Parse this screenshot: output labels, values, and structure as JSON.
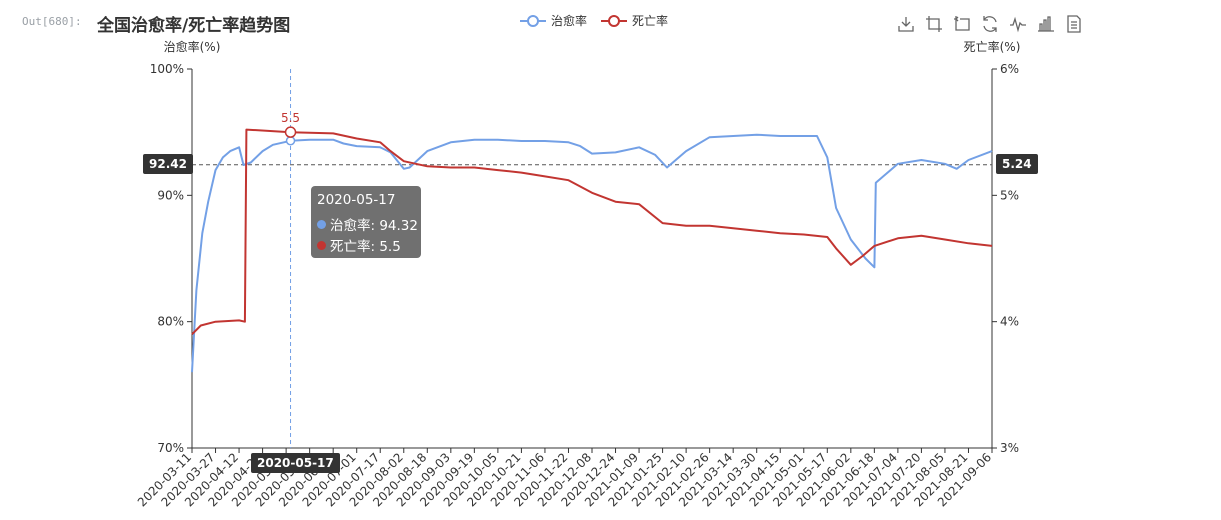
{
  "cell_prompt": "Out[680]:",
  "title": "全国治愈率/死亡率趋势图",
  "legend": [
    {
      "name": "治愈率",
      "color": "#73a0e6"
    },
    {
      "name": "死亡率",
      "color": "#c23531"
    }
  ],
  "toolbox": [
    "save-icon",
    "zoom-icon",
    "zoom-reset-icon",
    "restore-icon",
    "line-chart-icon",
    "bar-chart-icon",
    "data-view-icon"
  ],
  "markers": {
    "left_value": "92.42",
    "right_value": "5.24",
    "x_value": "2020-05-17",
    "point_label": "5.5"
  },
  "tooltip": {
    "date": "2020-05-17",
    "rows": [
      {
        "label": "治愈率: 94.32",
        "color": "#73a0e6"
      },
      {
        "label": "死亡率: 5.5",
        "color": "#c23531"
      }
    ]
  },
  "chart_data": {
    "type": "line",
    "x_start": "2020-03-11",
    "x_end": "2021-09-06",
    "x_ticks": [
      "2020-03-11",
      "2020-03-27",
      "2020-04-12",
      "2020-04-28",
      "2020-05-14",
      "2020-05-30",
      "2020-06-15",
      "2020-07-01",
      "2020-07-17",
      "2020-08-02",
      "2020-08-18",
      "2020-09-03",
      "2020-09-19",
      "2020-10-05",
      "2020-10-21",
      "2020-11-06",
      "2020-11-22",
      "2020-12-08",
      "2020-12-24",
      "2021-01-09",
      "2021-01-25",
      "2021-02-10",
      "2021-02-26",
      "2021-03-14",
      "2021-03-30",
      "2021-04-15",
      "2021-05-01",
      "2021-05-17",
      "2021-06-02",
      "2021-06-18",
      "2021-07-04",
      "2021-07-20",
      "2021-08-05",
      "2021-08-21",
      "2021-09-06"
    ],
    "y_left": {
      "name": "治愈率(%)",
      "min": 70,
      "max": 100,
      "ticks": [
        "70%",
        "80%",
        "90%",
        "100%"
      ]
    },
    "y_right": {
      "name": "死亡率(%)",
      "min": 3,
      "max": 6,
      "ticks": [
        "3%",
        "4%",
        "5%",
        "6%"
      ]
    },
    "series": [
      {
        "name": "治愈率",
        "color": "#73a0e6",
        "axis": "left",
        "points": [
          [
            "2020-03-11",
            76.0
          ],
          [
            "2020-03-14",
            82.5
          ],
          [
            "2020-03-18",
            87.0
          ],
          [
            "2020-03-22",
            89.5
          ],
          [
            "2020-03-27",
            92.0
          ],
          [
            "2020-04-01",
            93.0
          ],
          [
            "2020-04-06",
            93.5
          ],
          [
            "2020-04-12",
            93.8
          ],
          [
            "2020-04-15",
            92.4
          ],
          [
            "2020-04-20",
            92.6
          ],
          [
            "2020-04-28",
            93.5
          ],
          [
            "2020-05-05",
            94.0
          ],
          [
            "2020-05-17",
            94.32
          ],
          [
            "2020-05-30",
            94.4
          ],
          [
            "2020-06-15",
            94.4
          ],
          [
            "2020-06-22",
            94.1
          ],
          [
            "2020-07-01",
            93.9
          ],
          [
            "2020-07-17",
            93.8
          ],
          [
            "2020-07-24",
            93.4
          ],
          [
            "2020-08-02",
            92.1
          ],
          [
            "2020-08-06",
            92.2
          ],
          [
            "2020-08-18",
            93.5
          ],
          [
            "2020-09-03",
            94.2
          ],
          [
            "2020-09-19",
            94.4
          ],
          [
            "2020-10-05",
            94.4
          ],
          [
            "2020-10-21",
            94.3
          ],
          [
            "2020-11-06",
            94.3
          ],
          [
            "2020-11-22",
            94.2
          ],
          [
            "2020-11-30",
            93.9
          ],
          [
            "2020-12-08",
            93.3
          ],
          [
            "2020-12-24",
            93.4
          ],
          [
            "2021-01-09",
            93.8
          ],
          [
            "2021-01-20",
            93.2
          ],
          [
            "2021-01-28",
            92.2
          ],
          [
            "2021-02-10",
            93.5
          ],
          [
            "2021-02-26",
            94.6
          ],
          [
            "2021-03-14",
            94.7
          ],
          [
            "2021-03-30",
            94.8
          ],
          [
            "2021-04-15",
            94.7
          ],
          [
            "2021-05-01",
            94.7
          ],
          [
            "2021-05-10",
            94.7
          ],
          [
            "2021-05-17",
            93.0
          ],
          [
            "2021-05-23",
            89.0
          ],
          [
            "2021-06-02",
            86.5
          ],
          [
            "2021-06-12",
            85.0
          ],
          [
            "2021-06-18",
            84.3
          ],
          [
            "2021-06-19",
            91.0
          ],
          [
            "2021-06-24",
            91.5
          ],
          [
            "2021-07-04",
            92.5
          ],
          [
            "2021-07-20",
            92.8
          ],
          [
            "2021-08-05",
            92.5
          ],
          [
            "2021-08-13",
            92.1
          ],
          [
            "2021-08-21",
            92.8
          ],
          [
            "2021-09-06",
            93.5
          ]
        ]
      },
      {
        "name": "死亡率",
        "color": "#c23531",
        "axis": "right",
        "points": [
          [
            "2020-03-11",
            3.9
          ],
          [
            "2020-03-17",
            3.97
          ],
          [
            "2020-03-27",
            4.0
          ],
          [
            "2020-04-12",
            4.01
          ],
          [
            "2020-04-16",
            4.0
          ],
          [
            "2020-04-17",
            5.52
          ],
          [
            "2020-05-17",
            5.5
          ],
          [
            "2020-06-15",
            5.49
          ],
          [
            "2020-07-01",
            5.45
          ],
          [
            "2020-07-17",
            5.42
          ],
          [
            "2020-07-24",
            5.35
          ],
          [
            "2020-08-02",
            5.27
          ],
          [
            "2020-08-18",
            5.23
          ],
          [
            "2020-09-03",
            5.22
          ],
          [
            "2020-09-19",
            5.22
          ],
          [
            "2020-10-05",
            5.2
          ],
          [
            "2020-10-21",
            5.18
          ],
          [
            "2020-11-06",
            5.15
          ],
          [
            "2020-11-22",
            5.12
          ],
          [
            "2020-12-08",
            5.02
          ],
          [
            "2020-12-24",
            4.95
          ],
          [
            "2021-01-09",
            4.93
          ],
          [
            "2021-01-25",
            4.78
          ],
          [
            "2021-02-10",
            4.76
          ],
          [
            "2021-02-26",
            4.76
          ],
          [
            "2021-03-14",
            4.74
          ],
          [
            "2021-03-30",
            4.72
          ],
          [
            "2021-04-15",
            4.7
          ],
          [
            "2021-05-01",
            4.69
          ],
          [
            "2021-05-17",
            4.67
          ],
          [
            "2021-05-23",
            4.58
          ],
          [
            "2021-06-02",
            4.45
          ],
          [
            "2021-06-10",
            4.52
          ],
          [
            "2021-06-18",
            4.6
          ],
          [
            "2021-07-04",
            4.66
          ],
          [
            "2021-07-20",
            4.68
          ],
          [
            "2021-08-05",
            4.65
          ],
          [
            "2021-08-21",
            4.62
          ],
          [
            "2021-09-06",
            4.6
          ]
        ]
      }
    ],
    "markLine": {
      "left": 92.42,
      "right": 5.24
    }
  }
}
